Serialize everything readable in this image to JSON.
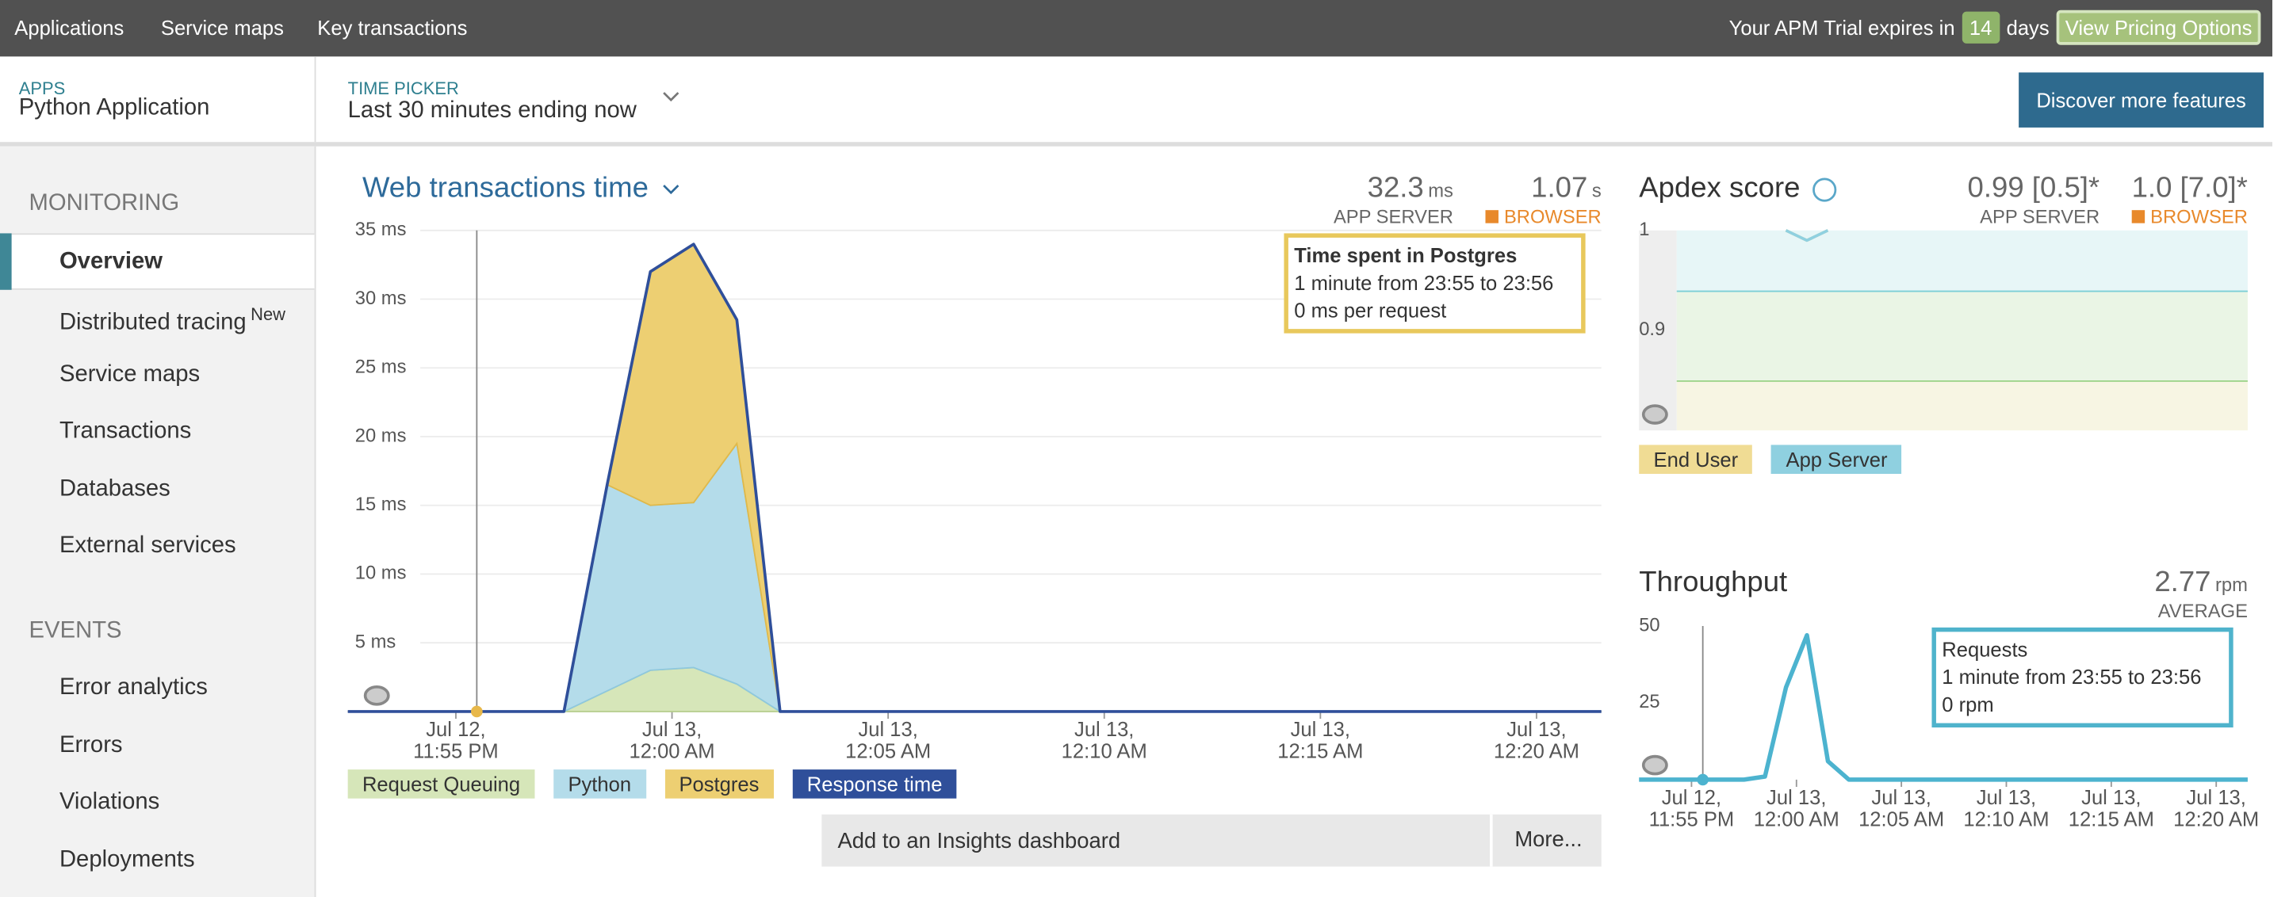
{
  "top_nav": {
    "links": [
      "Applications",
      "Service maps",
      "Key transactions"
    ],
    "trial_text": "Your APM Trial expires in",
    "trial_days": 14,
    "trial_unit": "days",
    "pricing_button": "View Pricing Options"
  },
  "app_header": {
    "label": "APPS",
    "name": "Python Application"
  },
  "time_picker": {
    "label": "TIME PICKER",
    "value": "Last 30 minutes ending now"
  },
  "discover_button": "Discover more features",
  "sidebar": {
    "selected": "Overview",
    "sections": [
      {
        "title": "MONITORING",
        "items": [
          {
            "label": "Overview"
          },
          {
            "label": "Distributed tracing",
            "badge": "New"
          },
          {
            "label": "Service maps"
          },
          {
            "label": "Transactions"
          },
          {
            "label": "Databases"
          },
          {
            "label": "External services"
          }
        ]
      },
      {
        "title": "EVENTS",
        "items": [
          {
            "label": "Error analytics"
          },
          {
            "label": "Errors"
          },
          {
            "label": "Violations"
          },
          {
            "label": "Deployments"
          }
        ]
      }
    ]
  },
  "chart_data": [
    {
      "type": "area",
      "title": "Web transactions time",
      "summary": [
        {
          "value": 32.3,
          "unit": "ms",
          "label": "APP SERVER"
        },
        {
          "value": 1.07,
          "unit": "s",
          "label": "BROWSER",
          "color": "#e8892b"
        }
      ],
      "x": [
        -2.5,
        2.5,
        3.5,
        4.5,
        5.5,
        6.5,
        7.5,
        26.5
      ],
      "xlim": [
        -2.5,
        26.5
      ],
      "xticks": [
        {
          "value": 0,
          "label": "Jul 12,\n11:55 PM"
        },
        {
          "value": 5,
          "label": "Jul 13,\n12:00 AM"
        },
        {
          "value": 10,
          "label": "Jul 13,\n12:05 AM"
        },
        {
          "value": 15,
          "label": "Jul 13,\n12:10 AM"
        },
        {
          "value": 20,
          "label": "Jul 13,\n12:15 AM"
        },
        {
          "value": 25,
          "label": "Jul 13,\n12:20 AM"
        }
      ],
      "ylim": [
        0,
        35
      ],
      "yticks": [
        {
          "value": 5,
          "label": "5 ms"
        },
        {
          "value": 10,
          "label": "10 ms"
        },
        {
          "value": 15,
          "label": "15 ms"
        },
        {
          "value": 20,
          "label": "20 ms"
        },
        {
          "value": 25,
          "label": "25 ms"
        },
        {
          "value": 30,
          "label": "30 ms"
        },
        {
          "value": 35,
          "label": "35 ms"
        }
      ],
      "grid": true,
      "legend": "bottom-left",
      "series": [
        {
          "name": "Request Queuing",
          "color": "#d6e6b9",
          "line_color": "#b8cf90",
          "values": [
            0,
            0,
            1.5,
            3,
            3.2,
            2,
            0,
            0
          ]
        },
        {
          "name": "Python",
          "color": "#b4dcea",
          "line_color": "#8fc8dd",
          "values": [
            0,
            0,
            15,
            12,
            12,
            17.5,
            0,
            0
          ]
        },
        {
          "name": "Postgres",
          "color": "#edcf72",
          "line_color": "#e0b94a",
          "values": [
            0,
            0,
            0,
            17,
            18.8,
            9,
            0,
            0
          ]
        },
        {
          "name": "Response time",
          "color": "#2f4f9a",
          "style": "line",
          "values": [
            0,
            0,
            16.5,
            32,
            34,
            28.5,
            0,
            0
          ]
        }
      ],
      "tooltip": {
        "title": "Time spent in Postgres",
        "lines": [
          "1 minute from 23:55 to 23:56",
          "0 ms per request"
        ],
        "color": "#e8c85c"
      }
    },
    {
      "type": "line",
      "title": "Apdex score",
      "summary": [
        {
          "value": "0.99 [0.5]*",
          "label": "APP SERVER"
        },
        {
          "value": "1.0 [7.0]*",
          "label": "BROWSER",
          "color": "#e8892b"
        }
      ],
      "x": [
        4.5,
        5.5,
        6.5
      ],
      "xlim": [
        -0.7,
        26.5
      ],
      "ylim": [
        0.8,
        1
      ],
      "yticks": [
        1,
        0.9
      ],
      "legend": "bottom-left",
      "series": [
        {
          "name": "End User",
          "color": "#f0dc94",
          "values": [
            1,
            0.99,
            1
          ]
        },
        {
          "name": "App Server",
          "color": "#8fd0e0",
          "values": [
            1,
            0.99,
            1
          ]
        }
      ]
    },
    {
      "type": "line",
      "title": "Throughput",
      "summary": [
        {
          "value": 2.77,
          "unit": "rpm",
          "label": "AVERAGE"
        }
      ],
      "x": [
        -2.5,
        2.5,
        3.5,
        4.5,
        5.5,
        6.5,
        7.5,
        26.5
      ],
      "xlim": [
        -2.5,
        26.5
      ],
      "xticks": [
        {
          "value": 0,
          "label": "Jul 12,\n11:55 PM"
        },
        {
          "value": 5,
          "label": "Jul 13,\n12:00 AM"
        },
        {
          "value": 10,
          "label": "Jul 13,\n12:05 AM"
        },
        {
          "value": 15,
          "label": "Jul 13,\n12:10 AM"
        },
        {
          "value": 20,
          "label": "Jul 13,\n12:15 AM"
        },
        {
          "value": 25,
          "label": "Jul 13,\n12:20 AM"
        }
      ],
      "ylim": [
        0,
        50
      ],
      "yticks": [
        25,
        50
      ],
      "series": [
        {
          "color": "#4cb3cf",
          "values": [
            0,
            0,
            1,
            30,
            47,
            6,
            0,
            0
          ]
        }
      ],
      "tooltip": {
        "title": "Requests",
        "lines": [
          "1 minute from 23:55 to 23:56",
          "0 rpm"
        ],
        "color": "#4fb3cc"
      }
    }
  ],
  "insights": {
    "add": "Add to an Insights dashboard",
    "more": "More..."
  }
}
